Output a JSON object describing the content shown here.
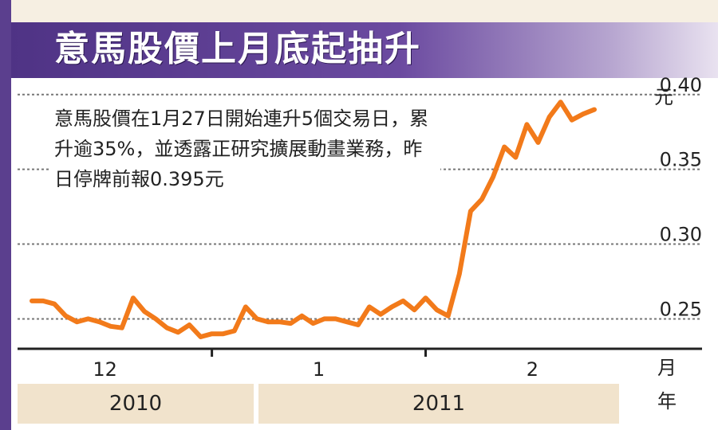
{
  "title": "意馬股價上月底起抽升",
  "annotation": "意馬股價在1月27日開始連升5個交易日，累升逾35%，並透露正研究擴展動畫業務，昨日停牌前報0.395元",
  "colors": {
    "line": "#f27a1a",
    "title_bg": "#5b3f8e"
  },
  "chart_data": {
    "type": "line",
    "title": "意馬股價上月底起抽升",
    "xlabel": "月",
    "ylabel": "元",
    "ylim": [
      0.23,
      0.41
    ],
    "yticks": [
      0.25,
      0.3,
      0.35,
      0.4
    ],
    "ytick_labels": [
      "0.25",
      "0.30",
      "0.35",
      "0.40"
    ],
    "grid": "dotted-horizontal",
    "x_tick_labels": [
      "12",
      "1",
      "2"
    ],
    "x_tick_positions": [
      6.5,
      25.5,
      44.5
    ],
    "x_year_labels": [
      "2010",
      "2011"
    ],
    "x_year_unit": "年",
    "series": [
      {
        "values": [
          0.262,
          0.262,
          0.26,
          0.252,
          0.248,
          0.25,
          0.248,
          0.245,
          0.244,
          0.264,
          0.255,
          0.25,
          0.244,
          0.241,
          0.246,
          0.238,
          0.24,
          0.24,
          0.242,
          0.258,
          0.25,
          0.248,
          0.248,
          0.247,
          0.252,
          0.247,
          0.25,
          0.25,
          0.248,
          0.246,
          0.258,
          0.253,
          0.258,
          0.262,
          0.256,
          0.264,
          0.256,
          0.252,
          0.28,
          0.322,
          0.33,
          0.345,
          0.365,
          0.358,
          0.38,
          0.368,
          0.385,
          0.395,
          0.383,
          0.387,
          0.39
        ]
      }
    ]
  }
}
